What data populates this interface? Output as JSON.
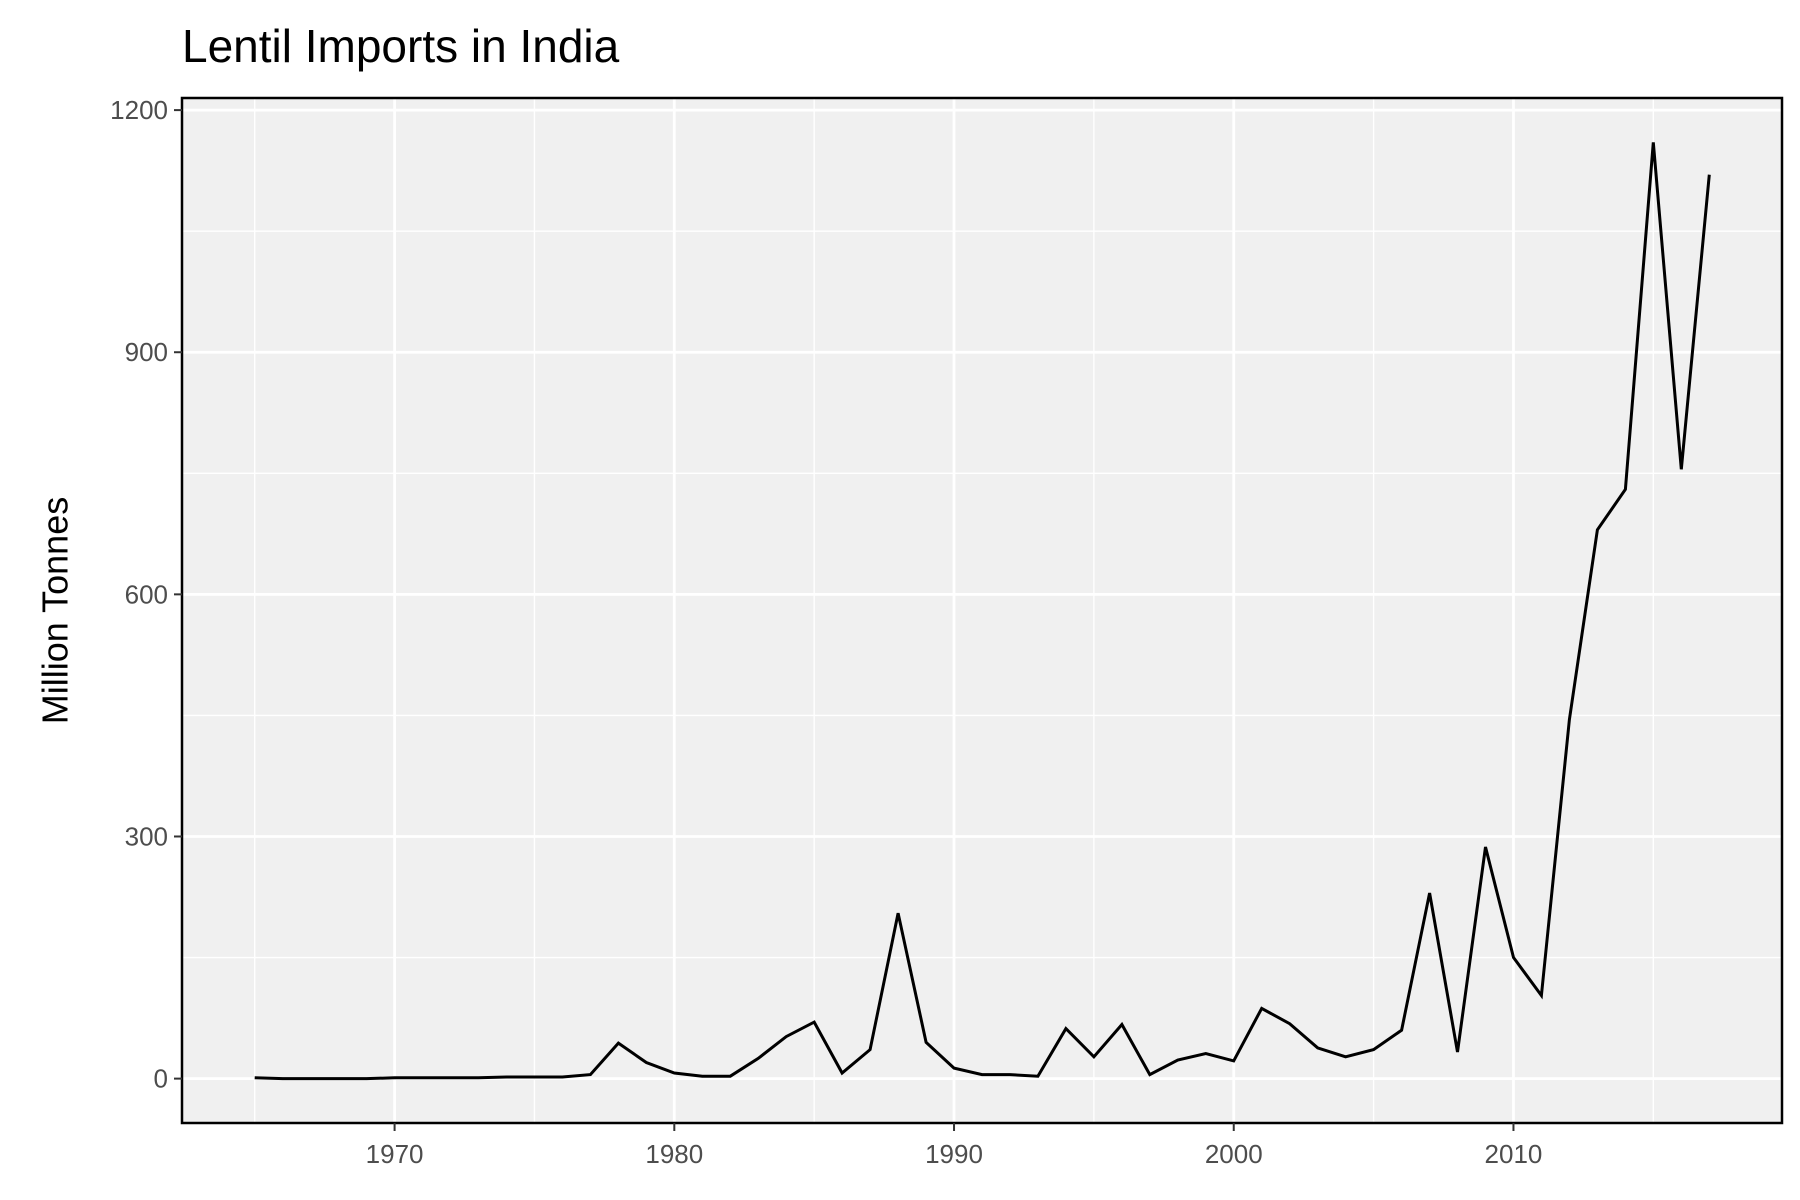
{
  "chart_data": {
    "type": "line",
    "title": "Lentil Imports in India",
    "xlabel": "",
    "ylabel": "Million Tonnes",
    "xlim": [
      1962.4,
      2019.6
    ],
    "ylim": [
      -55,
      1215
    ],
    "x_ticks": [
      1970,
      1980,
      1990,
      2000,
      2010
    ],
    "x_minor_ticks": [
      1965,
      1975,
      1985,
      1995,
      2005,
      2015
    ],
    "y_ticks": [
      0,
      300,
      600,
      900,
      1200
    ],
    "y_minor_ticks": [
      150,
      450,
      750,
      1050
    ],
    "grid": true,
    "legend": "none",
    "colors": {
      "panel": "#f0f0f0",
      "grid": "#ffffff",
      "line": "#000000",
      "border": "#000000"
    },
    "series": [
      {
        "x": [
          1965,
          1966,
          1967,
          1968,
          1969,
          1970,
          1971,
          1972,
          1973,
          1974,
          1975,
          1976,
          1977,
          1978,
          1979,
          1980,
          1981,
          1982,
          1983,
          1984,
          1985,
          1986,
          1987,
          1988,
          1989,
          1990,
          1991,
          1992,
          1993,
          1994,
          1995,
          1996,
          1997,
          1998,
          1999,
          2000,
          2001,
          2002,
          2003,
          2004,
          2005,
          2006,
          2007,
          2008,
          2009,
          2010,
          2011,
          2012,
          2013,
          2014,
          2015,
          2016,
          2017
        ],
        "values": [
          1,
          0,
          0,
          0,
          0,
          1,
          1,
          1,
          1,
          2,
          2,
          2,
          5,
          44,
          20,
          7,
          3,
          3,
          25,
          52,
          70,
          7,
          36,
          205,
          45,
          13,
          5,
          5,
          3,
          62,
          27,
          67,
          5,
          23,
          31,
          22,
          87,
          68,
          38,
          27,
          36,
          60,
          230,
          33,
          287,
          150,
          103,
          445,
          680,
          730,
          1160,
          755,
          1120
        ]
      }
    ]
  }
}
